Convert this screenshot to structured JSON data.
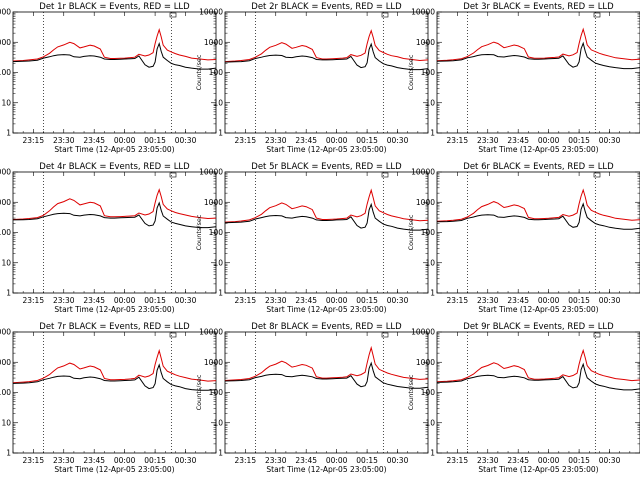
{
  "chart_data": {
    "type": "line",
    "layout": {
      "rows": 3,
      "cols": 3
    },
    "yscale": "log",
    "ylim": [
      1,
      10000
    ],
    "ylabel": "Counts/sec",
    "xlabel": "Start Time (12-Apr-05 23:05:00)",
    "xlim_minutes": [
      0,
      100
    ],
    "x_ticks": [
      {
        "minute": 10,
        "label": "23:15"
      },
      {
        "minute": 25,
        "label": "23:30"
      },
      {
        "minute": 40,
        "label": "23:45"
      },
      {
        "minute": 55,
        "label": "00:00"
      },
      {
        "minute": 70,
        "label": "00:15"
      },
      {
        "minute": 85,
        "label": "00:30"
      }
    ],
    "y_ticks": [
      {
        "value": 1,
        "label": "1"
      },
      {
        "value": 10,
        "label": "10"
      },
      {
        "value": 100,
        "label": "100"
      },
      {
        "value": 1000,
        "label": "1000"
      },
      {
        "value": 10000,
        "label": "10000"
      }
    ],
    "vlines_minutes": [
      15,
      78
    ],
    "series_colors": {
      "events": "#000000",
      "lld": "#dd0000"
    },
    "x": [
      0,
      5,
      8,
      12,
      15,
      18,
      20,
      22,
      25,
      28,
      30,
      33,
      35,
      38,
      40,
      43,
      45,
      48,
      50,
      53,
      55,
      58,
      60,
      62,
      65,
      67,
      69,
      70,
      71,
      72,
      73,
      74,
      76,
      78,
      80,
      82,
      85,
      88,
      92,
      96,
      100
    ],
    "panels": [
      {
        "title": "Det 1r  BLACK = Events, RED = LLD",
        "events": [
          230,
          235,
          240,
          255,
          300,
          330,
          360,
          380,
          390,
          380,
          330,
          320,
          340,
          360,
          350,
          320,
          280,
          270,
          270,
          275,
          280,
          285,
          290,
          350,
          180,
          150,
          160,
          220,
          600,
          900,
          500,
          320,
          250,
          200,
          180,
          170,
          150,
          140,
          130,
          130,
          140
        ],
        "lld": [
          240,
          250,
          260,
          280,
          330,
          430,
          560,
          700,
          820,
          1000,
          900,
          650,
          700,
          800,
          750,
          600,
          320,
          290,
          290,
          295,
          300,
          310,
          320,
          400,
          350,
          380,
          450,
          900,
          1600,
          2600,
          1500,
          800,
          550,
          480,
          420,
          380,
          340,
          300,
          280,
          260,
          270
        ]
      },
      {
        "title": "Det 2r  BLACK = Events, RED = LLD",
        "events": [
          220,
          225,
          230,
          245,
          290,
          320,
          345,
          365,
          375,
          365,
          320,
          310,
          330,
          350,
          340,
          310,
          270,
          260,
          260,
          265,
          270,
          275,
          280,
          340,
          175,
          145,
          155,
          210,
          580,
          870,
          480,
          310,
          240,
          195,
          175,
          165,
          145,
          135,
          125,
          125,
          135
        ],
        "lld": [
          230,
          240,
          250,
          270,
          320,
          415,
          540,
          680,
          790,
          970,
          870,
          630,
          680,
          780,
          730,
          580,
          310,
          280,
          280,
          285,
          290,
          300,
          310,
          390,
          340,
          370,
          440,
          880,
          1550,
          2400,
          1450,
          780,
          530,
          460,
          400,
          360,
          330,
          290,
          270,
          250,
          260
        ]
      },
      {
        "title": "Det 3r  BLACK = Events, RED = LLD",
        "events": [
          235,
          240,
          245,
          260,
          305,
          335,
          365,
          385,
          395,
          385,
          335,
          325,
          345,
          365,
          355,
          325,
          285,
          275,
          275,
          280,
          285,
          290,
          295,
          355,
          185,
          150,
          165,
          225,
          610,
          920,
          510,
          325,
          255,
          205,
          185,
          170,
          155,
          145,
          135,
          135,
          145
        ],
        "lld": [
          245,
          255,
          265,
          285,
          335,
          440,
          570,
          710,
          830,
          1010,
          910,
          660,
          710,
          810,
          760,
          610,
          325,
          295,
          295,
          300,
          305,
          315,
          325,
          405,
          355,
          385,
          455,
          910,
          1650,
          2700,
          1550,
          820,
          560,
          490,
          430,
          390,
          345,
          305,
          285,
          265,
          275
        ]
      },
      {
        "title": "Det 4r  BLACK = Events, RED = LLD",
        "events": [
          260,
          265,
          270,
          285,
          330,
          370,
          400,
          420,
          430,
          420,
          370,
          355,
          375,
          395,
          385,
          355,
          310,
          300,
          300,
          305,
          310,
          315,
          320,
          380,
          200,
          165,
          175,
          240,
          650,
          950,
          540,
          350,
          275,
          220,
          200,
          185,
          165,
          155,
          145,
          145,
          155
        ],
        "lld": [
          270,
          280,
          290,
          310,
          370,
          520,
          700,
          900,
          1050,
          1300,
          1150,
          820,
          880,
          1000,
          950,
          760,
          360,
          330,
          330,
          335,
          340,
          350,
          360,
          440,
          380,
          410,
          490,
          950,
          1700,
          2600,
          1550,
          850,
          600,
          520,
          460,
          420,
          380,
          340,
          310,
          290,
          300
        ]
      },
      {
        "title": "Det 5r  BLACK = Events, RED = LLD",
        "events": [
          210,
          215,
          220,
          235,
          280,
          310,
          335,
          355,
          365,
          355,
          310,
          300,
          320,
          340,
          330,
          300,
          260,
          250,
          250,
          255,
          260,
          265,
          270,
          330,
          170,
          140,
          150,
          205,
          560,
          850,
          470,
          300,
          235,
          190,
          170,
          160,
          140,
          130,
          120,
          120,
          130
        ],
        "lld": [
          220,
          230,
          240,
          260,
          310,
          400,
          520,
          660,
          770,
          950,
          850,
          610,
          660,
          760,
          710,
          570,
          300,
          270,
          270,
          275,
          280,
          290,
          300,
          380,
          330,
          360,
          430,
          860,
          1500,
          2500,
          1400,
          760,
          520,
          450,
          395,
          355,
          320,
          285,
          265,
          245,
          255
        ]
      },
      {
        "title": "Det 6r  BLACK = Events, RED = LLD",
        "events": [
          225,
          230,
          235,
          250,
          295,
          325,
          355,
          375,
          385,
          375,
          325,
          315,
          335,
          355,
          345,
          315,
          275,
          265,
          265,
          270,
          275,
          280,
          285,
          345,
          180,
          148,
          158,
          215,
          590,
          880,
          490,
          315,
          245,
          198,
          178,
          168,
          148,
          138,
          128,
          128,
          138
        ],
        "lld": [
          235,
          245,
          255,
          275,
          325,
          430,
          570,
          720,
          850,
          1050,
          930,
          670,
          720,
          820,
          770,
          620,
          315,
          285,
          285,
          290,
          295,
          305,
          315,
          395,
          345,
          375,
          445,
          890,
          1600,
          2550,
          1500,
          790,
          540,
          470,
          410,
          370,
          335,
          295,
          275,
          255,
          265
        ]
      },
      {
        "title": "Det 7r  BLACK = Events, RED = LLD",
        "events": [
          200,
          205,
          210,
          225,
          265,
          295,
          320,
          340,
          350,
          340,
          295,
          285,
          305,
          325,
          315,
          285,
          250,
          240,
          240,
          245,
          250,
          255,
          260,
          320,
          165,
          135,
          145,
          195,
          540,
          820,
          450,
          290,
          225,
          182,
          165,
          155,
          135,
          125,
          118,
          118,
          125
        ],
        "lld": [
          210,
          220,
          230,
          250,
          300,
          390,
          510,
          650,
          760,
          940,
          840,
          600,
          650,
          750,
          700,
          560,
          290,
          262,
          262,
          268,
          272,
          282,
          292,
          372,
          322,
          352,
          420,
          840,
          1450,
          2400,
          1350,
          740,
          505,
          440,
          385,
          345,
          310,
          278,
          258,
          238,
          248
        ]
      },
      {
        "title": "Det 8r  BLACK = Events, RED = LLD",
        "events": [
          240,
          245,
          250,
          265,
          310,
          340,
          370,
          390,
          400,
          390,
          340,
          330,
          350,
          370,
          360,
          330,
          290,
          280,
          280,
          285,
          290,
          295,
          300,
          360,
          190,
          155,
          168,
          230,
          620,
          940,
          520,
          330,
          260,
          210,
          188,
          175,
          158,
          148,
          138,
          138,
          148
        ],
        "lld": [
          250,
          260,
          270,
          290,
          345,
          450,
          590,
          740,
          870,
          1080,
          960,
          690,
          740,
          840,
          790,
          640,
          330,
          300,
          300,
          305,
          310,
          320,
          330,
          410,
          360,
          390,
          465,
          930,
          1750,
          3000,
          1650,
          860,
          580,
          505,
          440,
          400,
          355,
          315,
          292,
          272,
          282
        ]
      },
      {
        "title": "Det 9r  BLACK = Events, RED = LLD",
        "events": [
          215,
          220,
          225,
          240,
          285,
          315,
          340,
          360,
          370,
          360,
          315,
          305,
          325,
          345,
          335,
          305,
          265,
          255,
          255,
          260,
          265,
          270,
          275,
          335,
          172,
          142,
          152,
          208,
          570,
          860,
          475,
          305,
          238,
          192,
          172,
          162,
          142,
          132,
          122,
          122,
          132
        ],
        "lld": [
          225,
          235,
          245,
          265,
          315,
          405,
          530,
          670,
          780,
          960,
          860,
          620,
          670,
          770,
          720,
          575,
          305,
          275,
          275,
          280,
          285,
          295,
          305,
          385,
          335,
          365,
          435,
          870,
          1520,
          2450,
          1420,
          770,
          525,
          455,
          398,
          358,
          322,
          288,
          268,
          248,
          258
        ]
      }
    ]
  }
}
